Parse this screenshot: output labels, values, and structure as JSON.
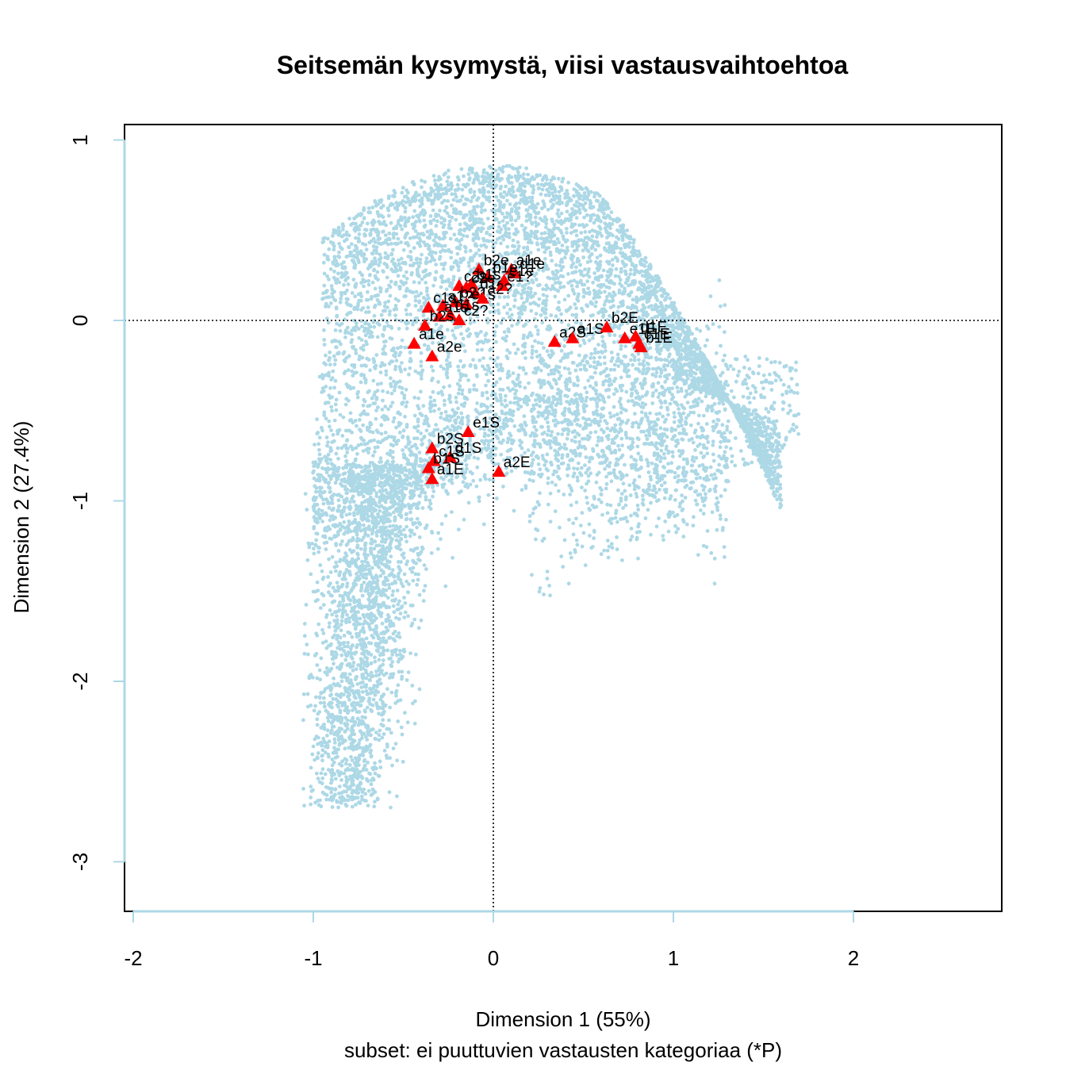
{
  "chart_data": {
    "type": "scatter",
    "title": "Seitsemän kysymystä, viisi vastausvaihtoehtoa",
    "xlabel": "Dimension 1 (55%)",
    "ylabel": "Dimension 2 (27.4%)",
    "subtitle": "subset: ei puuttuvien vastausten kategoriaa (*P)",
    "xlim": [
      -2.02,
      2.83
    ],
    "ylim": [
      -3.2,
      1.08
    ],
    "x_ticks": [
      -2,
      -1,
      0,
      1,
      2
    ],
    "x_tick_labels": [
      "-2",
      "-1",
      "0",
      "1",
      "2"
    ],
    "y_ticks": [
      -3,
      -2,
      -1,
      0,
      1
    ],
    "y_tick_labels": [
      "-3",
      "-2",
      "-1",
      "0",
      "1"
    ],
    "reference_lines": {
      "x": 0,
      "y": 0,
      "style": "dotted"
    },
    "grid": false,
    "colors": {
      "background_points": "#add8e6",
      "category_points": "#ff0000",
      "axis": "#add8e6",
      "frame": "#000000"
    },
    "background_cloud": {
      "description_seed": 20240517,
      "count": 9000,
      "x_range": [
        -1.05,
        1.82
      ],
      "y_range": [
        -3.1,
        0.9
      ]
    },
    "series": [
      {
        "marker": "triangle",
        "points": [
          {
            "label": "b2e",
            "x": -0.08,
            "y": 0.28
          },
          {
            "label": "a1e",
            "x": 0.1,
            "y": 0.28
          },
          {
            "label": "d1e",
            "x": 0.12,
            "y": 0.26
          },
          {
            "label": "b1e",
            "x": -0.03,
            "y": 0.24
          },
          {
            "label": "e1e",
            "x": 0.06,
            "y": 0.22
          },
          {
            "label": "b1s",
            "x": -0.12,
            "y": 0.2
          },
          {
            "label": "c2s",
            "x": -0.19,
            "y": 0.19
          },
          {
            "label": "c2e",
            "x": -0.15,
            "y": 0.18
          },
          {
            "label": "d1e",
            "x": -0.1,
            "y": 0.15
          },
          {
            "label": "e1?",
            "x": 0.05,
            "y": 0.19
          },
          {
            "label": "b2?",
            "x": -0.21,
            "y": 0.1
          },
          {
            "label": "a1?",
            "x": -0.28,
            "y": 0.08
          },
          {
            "label": "e1s",
            "x": -0.15,
            "y": 0.09
          },
          {
            "label": "a2?",
            "x": -0.06,
            "y": 0.12
          },
          {
            "label": "c1s",
            "x": -0.36,
            "y": 0.07
          },
          {
            "label": "d1s",
            "x": -0.24,
            "y": 0.03
          },
          {
            "label": "a1s",
            "x": -0.3,
            "y": 0.02
          },
          {
            "label": "c2?",
            "x": -0.19,
            "y": 0.0
          },
          {
            "label": "b2s",
            "x": -0.38,
            "y": -0.03
          },
          {
            "label": "a1e",
            "x": -0.44,
            "y": -0.13
          },
          {
            "label": "a2e",
            "x": -0.34,
            "y": -0.2
          },
          {
            "label": "a2S",
            "x": 0.34,
            "y": -0.12
          },
          {
            "label": "a1S",
            "x": 0.44,
            "y": -0.1
          },
          {
            "label": "b2E",
            "x": 0.63,
            "y": -0.04
          },
          {
            "label": "e1E",
            "x": 0.73,
            "y": -0.1
          },
          {
            "label": "d1E",
            "x": 0.79,
            "y": -0.09
          },
          {
            "label": "c1E",
            "x": 0.81,
            "y": -0.13
          },
          {
            "label": "b1E",
            "x": 0.82,
            "y": -0.15
          },
          {
            "label": "e1S",
            "x": -0.14,
            "y": -0.62
          },
          {
            "label": "b2S",
            "x": -0.34,
            "y": -0.71
          },
          {
            "label": "d1S",
            "x": -0.24,
            "y": -0.76
          },
          {
            "label": "c1S",
            "x": -0.33,
            "y": -0.78
          },
          {
            "label": "b1S",
            "x": -0.36,
            "y": -0.82
          },
          {
            "label": "a1E",
            "x": -0.34,
            "y": -0.88
          },
          {
            "label": "a2E",
            "x": 0.03,
            "y": -0.84
          }
        ]
      }
    ]
  }
}
